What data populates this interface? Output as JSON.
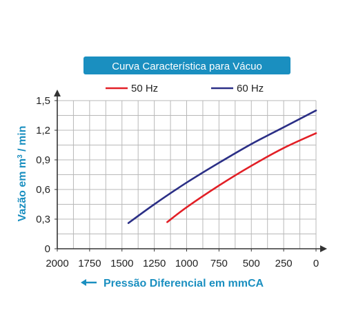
{
  "chart_data": {
    "type": "line",
    "title": "Curva Característica para Vácuo",
    "xlabel": "Pressão Diferencial em mmCA",
    "ylabel_main": "Vazão em m",
    "ylabel_sup": "3",
    "ylabel_tail": " / min",
    "x_reversed": true,
    "xlim": [
      2000,
      0
    ],
    "ylim": [
      0,
      1.5
    ],
    "x_ticks": [
      2000,
      1750,
      1500,
      1250,
      1000,
      750,
      500,
      250,
      0
    ],
    "x_tick_labels": [
      "2000",
      "1750",
      "1500",
      "1250",
      "1000",
      "750",
      "500",
      "250",
      "0"
    ],
    "y_ticks": [
      0,
      0.3,
      0.6,
      0.9,
      1.2,
      1.5
    ],
    "y_tick_labels": [
      "0",
      "0,3",
      "0,6",
      "0,9",
      "1,2",
      "1,5"
    ],
    "grid": true,
    "legend_position": "top",
    "series": [
      {
        "name": "50 Hz",
        "color": "#e21f26",
        "x": [
          1150,
          1000,
          750,
          500,
          250,
          0
        ],
        "y": [
          0.27,
          0.42,
          0.64,
          0.84,
          1.02,
          1.17
        ]
      },
      {
        "name": "60 Hz",
        "color": "#2b2f86",
        "x": [
          1450,
          1250,
          1000,
          750,
          500,
          250,
          0
        ],
        "y": [
          0.26,
          0.45,
          0.67,
          0.87,
          1.06,
          1.23,
          1.4
        ]
      }
    ]
  },
  "colors": {
    "title_bg": "#1a8fc0",
    "axis_title": "#1a8fc0",
    "grid": "#b8b8b8",
    "axis": "#333333"
  }
}
